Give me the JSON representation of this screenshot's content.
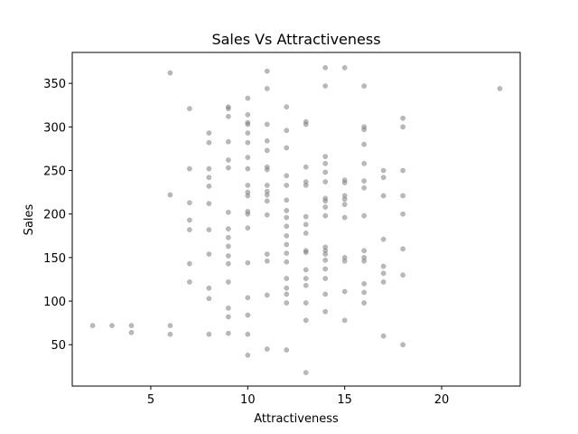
{
  "chart_data": {
    "type": "scatter",
    "title": "Sales Vs Attractiveness",
    "xlabel": "Attractiveness",
    "ylabel": "Sales",
    "xlim": [
      0.95,
      24.05
    ],
    "ylim": [
      2.5,
      385.5
    ],
    "xticks": [
      5,
      10,
      15,
      20
    ],
    "yticks": [
      50,
      100,
      150,
      200,
      250,
      300,
      350
    ],
    "grid": false,
    "point_color": "#808080",
    "points": [
      [
        2,
        72
      ],
      [
        3,
        72
      ],
      [
        4,
        72
      ],
      [
        4,
        64
      ],
      [
        6,
        362
      ],
      [
        6,
        222
      ],
      [
        6,
        72
      ],
      [
        6,
        62
      ],
      [
        7,
        321
      ],
      [
        7,
        252
      ],
      [
        7,
        213
      ],
      [
        7,
        193
      ],
      [
        7,
        182
      ],
      [
        7,
        143
      ],
      [
        7,
        122
      ],
      [
        8,
        293
      ],
      [
        8,
        282
      ],
      [
        8,
        252
      ],
      [
        8,
        242
      ],
      [
        8,
        232
      ],
      [
        8,
        212
      ],
      [
        8,
        182
      ],
      [
        8,
        154
      ],
      [
        8,
        115
      ],
      [
        8,
        103
      ],
      [
        8,
        62
      ],
      [
        9,
        323
      ],
      [
        9,
        321
      ],
      [
        9,
        312
      ],
      [
        9,
        283
      ],
      [
        9,
        262
      ],
      [
        9,
        253
      ],
      [
        9,
        202
      ],
      [
        9,
        183
      ],
      [
        9,
        173
      ],
      [
        9,
        163
      ],
      [
        9,
        152
      ],
      [
        9,
        143
      ],
      [
        9,
        122
      ],
      [
        9,
        92
      ],
      [
        9,
        82
      ],
      [
        9,
        63
      ],
      [
        10,
        333
      ],
      [
        10,
        314
      ],
      [
        10,
        305
      ],
      [
        10,
        303
      ],
      [
        10,
        293
      ],
      [
        10,
        282
      ],
      [
        10,
        265
      ],
      [
        10,
        252
      ],
      [
        10,
        233
      ],
      [
        10,
        225
      ],
      [
        10,
        221
      ],
      [
        10,
        203
      ],
      [
        10,
        200
      ],
      [
        10,
        184
      ],
      [
        10,
        144
      ],
      [
        10,
        104
      ],
      [
        10,
        84
      ],
      [
        10,
        62
      ],
      [
        10,
        38
      ],
      [
        11,
        364
      ],
      [
        11,
        344
      ],
      [
        11,
        303
      ],
      [
        11,
        284
      ],
      [
        11,
        273
      ],
      [
        11,
        254
      ],
      [
        11,
        251
      ],
      [
        11,
        233
      ],
      [
        11,
        226
      ],
      [
        11,
        222
      ],
      [
        11,
        215
      ],
      [
        11,
        199
      ],
      [
        11,
        154
      ],
      [
        11,
        146
      ],
      [
        11,
        107
      ],
      [
        11,
        45
      ],
      [
        12,
        323
      ],
      [
        12,
        296
      ],
      [
        12,
        276
      ],
      [
        12,
        244
      ],
      [
        12,
        233
      ],
      [
        12,
        216
      ],
      [
        12,
        204
      ],
      [
        12,
        196
      ],
      [
        12,
        186
      ],
      [
        12,
        175
      ],
      [
        12,
        165
      ],
      [
        12,
        155
      ],
      [
        12,
        145
      ],
      [
        12,
        126
      ],
      [
        12,
        115
      ],
      [
        12,
        108
      ],
      [
        12,
        98
      ],
      [
        12,
        44
      ],
      [
        13,
        306
      ],
      [
        13,
        303
      ],
      [
        13,
        254
      ],
      [
        13,
        237
      ],
      [
        13,
        233
      ],
      [
        13,
        197
      ],
      [
        13,
        188
      ],
      [
        13,
        178
      ],
      [
        13,
        158
      ],
      [
        13,
        156
      ],
      [
        13,
        136
      ],
      [
        13,
        126
      ],
      [
        13,
        118
      ],
      [
        13,
        98
      ],
      [
        13,
        78
      ],
      [
        13,
        18
      ],
      [
        14,
        368
      ],
      [
        14,
        347
      ],
      [
        14,
        266
      ],
      [
        14,
        258
      ],
      [
        14,
        248
      ],
      [
        14,
        237
      ],
      [
        14,
        218
      ],
      [
        14,
        215
      ],
      [
        14,
        208
      ],
      [
        14,
        198
      ],
      [
        14,
        162
      ],
      [
        14,
        158
      ],
      [
        14,
        154
      ],
      [
        14,
        147
      ],
      [
        14,
        137
      ],
      [
        14,
        126
      ],
      [
        14,
        108
      ],
      [
        14,
        88
      ],
      [
        15,
        368
      ],
      [
        15,
        239
      ],
      [
        15,
        236
      ],
      [
        15,
        221
      ],
      [
        15,
        217
      ],
      [
        15,
        211
      ],
      [
        15,
        196
      ],
      [
        15,
        150
      ],
      [
        15,
        146
      ],
      [
        15,
        111
      ],
      [
        15,
        78
      ],
      [
        16,
        347
      ],
      [
        16,
        300
      ],
      [
        16,
        297
      ],
      [
        16,
        280
      ],
      [
        16,
        258
      ],
      [
        16,
        238
      ],
      [
        16,
        230
      ],
      [
        16,
        198
      ],
      [
        16,
        158
      ],
      [
        16,
        150
      ],
      [
        16,
        146
      ],
      [
        16,
        120
      ],
      [
        16,
        110
      ],
      [
        16,
        98
      ],
      [
        17,
        250
      ],
      [
        17,
        242
      ],
      [
        17,
        221
      ],
      [
        17,
        171
      ],
      [
        17,
        140
      ],
      [
        17,
        132
      ],
      [
        17,
        122
      ],
      [
        17,
        60
      ],
      [
        18,
        310
      ],
      [
        18,
        300
      ],
      [
        18,
        250
      ],
      [
        18,
        221
      ],
      [
        18,
        200
      ],
      [
        18,
        160
      ],
      [
        18,
        130
      ],
      [
        18,
        50
      ],
      [
        23,
        344
      ]
    ]
  }
}
